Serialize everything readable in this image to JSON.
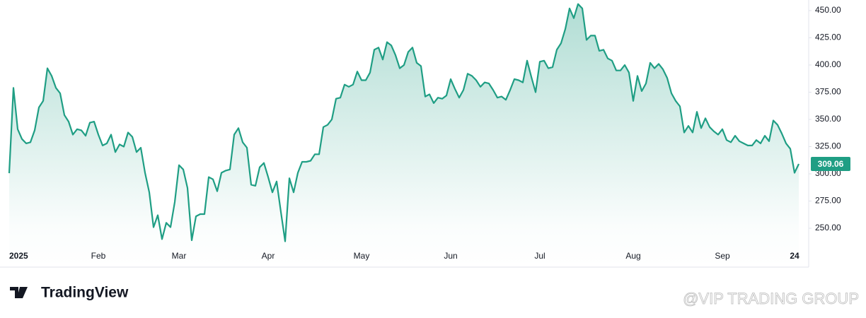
{
  "chart_data": {
    "type": "area",
    "logo_text": "TradingView",
    "watermark": "@VIP TRADING GROUP",
    "categories": [
      "2025",
      null,
      null,
      null,
      null,
      null,
      null,
      null,
      null,
      null,
      null,
      null,
      null,
      null,
      null,
      null,
      null,
      null,
      null,
      null,
      null,
      "Feb",
      null,
      null,
      null,
      null,
      null,
      null,
      null,
      null,
      null,
      null,
      null,
      null,
      null,
      null,
      null,
      null,
      null,
      null,
      "Mar",
      null,
      null,
      null,
      null,
      null,
      null,
      null,
      null,
      null,
      null,
      null,
      null,
      null,
      null,
      null,
      null,
      null,
      null,
      null,
      null,
      "Apr",
      null,
      null,
      null,
      null,
      null,
      null,
      null,
      null,
      null,
      null,
      null,
      null,
      null,
      null,
      null,
      null,
      null,
      null,
      null,
      null,
      null,
      "May",
      null,
      null,
      null,
      null,
      null,
      null,
      null,
      null,
      null,
      null,
      null,
      null,
      null,
      null,
      null,
      null,
      null,
      null,
      null,
      null,
      "Jun",
      null,
      null,
      null,
      null,
      null,
      null,
      null,
      null,
      null,
      null,
      null,
      null,
      null,
      null,
      null,
      null,
      null,
      null,
      null,
      null,
      "Jul",
      null,
      null,
      null,
      null,
      null,
      null,
      null,
      null,
      null,
      null,
      null,
      null,
      null,
      null,
      null,
      null,
      null,
      null,
      null,
      null,
      null,
      "Aug",
      null,
      null,
      null,
      null,
      null,
      null,
      null,
      null,
      null,
      null,
      null,
      null,
      null,
      null,
      null,
      null,
      null,
      null,
      null,
      null,
      "Sep",
      null,
      null,
      null,
      null,
      null,
      null,
      null,
      null,
      null,
      null,
      null,
      null,
      null,
      null,
      null,
      null,
      "24",
      null
    ],
    "series": [
      {
        "color": "#1f9e84",
        "values": [
          300.6,
          379,
          341,
          332,
          328,
          329,
          340,
          361,
          367,
          397,
          390,
          379,
          374,
          354,
          348,
          336,
          341,
          340,
          335,
          347,
          348,
          336,
          326,
          328,
          336,
          320,
          327,
          325,
          338,
          334,
          320,
          324,
          301,
          283,
          251,
          262,
          240,
          255,
          251,
          274,
          308,
          304,
          287,
          239,
          261,
          263,
          263,
          297,
          295,
          284,
          301,
          303,
          304,
          336,
          342,
          329,
          324,
          290,
          289,
          306,
          310,
          297,
          283,
          293,
          265,
          238,
          296,
          283,
          301,
          311,
          311,
          312,
          318,
          318,
          343,
          345,
          350,
          369,
          370,
          382,
          380,
          382,
          394,
          386,
          386,
          393,
          414,
          416,
          405,
          421,
          418,
          409,
          397,
          400,
          412,
          416,
          402,
          399,
          371,
          373,
          365,
          370,
          369,
          372,
          387,
          378,
          370,
          377,
          392,
          390,
          386,
          380,
          384,
          383,
          377,
          370,
          371,
          368,
          377,
          387,
          386,
          384,
          404,
          389,
          375,
          403,
          404,
          397,
          398,
          414,
          420,
          433,
          452,
          443,
          456,
          452,
          423,
          427,
          427,
          413,
          414,
          406,
          404,
          395,
          395,
          400,
          393,
          367,
          390,
          376,
          383,
          402,
          397,
          401,
          396,
          388,
          374,
          367,
          362,
          338,
          344,
          338,
          357,
          342,
          351,
          343,
          339,
          336,
          341,
          331,
          329,
          335,
          330,
          328,
          326,
          326,
          331,
          328,
          335,
          330,
          349,
          345,
          337,
          328,
          323,
          301,
          309.06
        ]
      }
    ],
    "ylim": [
      214.3,
      457.1
    ],
    "yticks": [
      {
        "value": 250,
        "label": "250.00"
      },
      {
        "value": 275,
        "label": "275.00"
      },
      {
        "value": 300,
        "label": "300.00"
      },
      {
        "value": 325,
        "label": "325.00"
      },
      {
        "value": 350,
        "label": "350.00"
      },
      {
        "value": 375,
        "label": "375.00"
      },
      {
        "value": 400,
        "label": "400.00"
      },
      {
        "value": 425,
        "label": "425.00"
      },
      {
        "value": 450,
        "label": "450.00"
      }
    ],
    "grid": false
  }
}
